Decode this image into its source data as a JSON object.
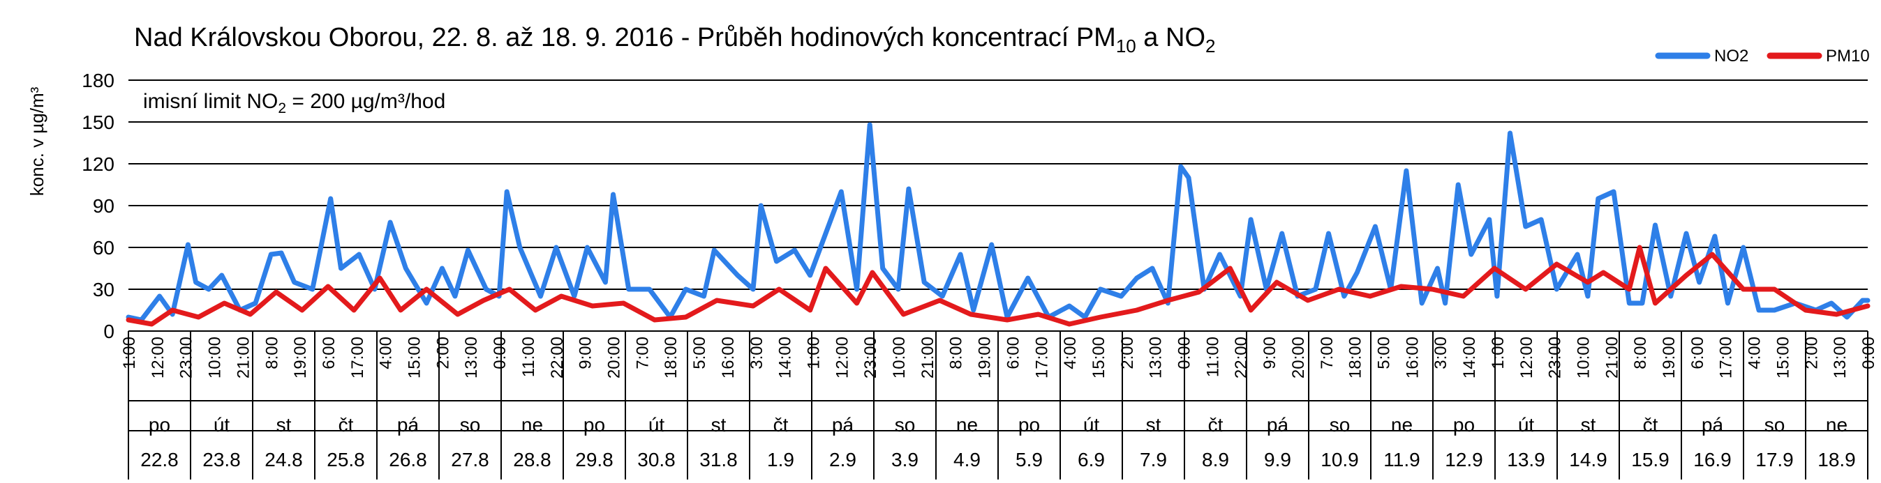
{
  "chart_data": {
    "type": "line",
    "title": {
      "main": "Nad Královskou Oborou, 22. 8. až 18. 9. 2016 - Průběh hodinových koncentrací PM",
      "sub1": "10",
      "mid": " a NO",
      "sub2": "2"
    },
    "ylabel": "konc. v µg/m³",
    "y_ticks": [
      0,
      30,
      60,
      90,
      120,
      150,
      180
    ],
    "ylim": [
      0,
      180
    ],
    "grid": true,
    "legend_position": "top-right",
    "annotation": {
      "pre": "imisní limit NO",
      "sub": "2",
      "post": " = 200 µg/m³/hod"
    },
    "x_start": "2016-08-22 01:00",
    "x_end": "2016-09-19 00:00",
    "x_tick_labels": [
      "1:00",
      "12:00",
      "23:00",
      "10:00",
      "21:00",
      "8:00",
      "19:00",
      "6:00",
      "17:00",
      "4:00",
      "15:00",
      "2:00",
      "13:00",
      "0:00",
      "11:00",
      "22:00",
      "9:00",
      "20:00",
      "7:00",
      "18:00",
      "5:00",
      "16:00",
      "3:00",
      "14:00",
      "1:00",
      "12:00",
      "23:00",
      "10:00",
      "21:00",
      "8:00",
      "19:00",
      "6:00",
      "17:00",
      "4:00",
      "15:00",
      "2:00",
      "13:00",
      "0:00",
      "11:00",
      "22:00",
      "9:00",
      "20:00",
      "7:00",
      "18:00",
      "5:00",
      "16:00",
      "3:00",
      "14:00",
      "1:00",
      "12:00",
      "23:00",
      "10:00",
      "21:00",
      "8:00",
      "19:00",
      "6:00",
      "17:00",
      "4:00",
      "15:00",
      "2:00",
      "13:00",
      "0:00"
    ],
    "days": [
      {
        "dow": "po",
        "date": "22.8"
      },
      {
        "dow": "út",
        "date": "23.8"
      },
      {
        "dow": "st",
        "date": "24.8"
      },
      {
        "dow": "čt",
        "date": "25.8"
      },
      {
        "dow": "pá",
        "date": "26.8"
      },
      {
        "dow": "so",
        "date": "27.8"
      },
      {
        "dow": "ne",
        "date": "28.8"
      },
      {
        "dow": "po",
        "date": "29.8"
      },
      {
        "dow": "út",
        "date": "30.8"
      },
      {
        "dow": "st",
        "date": "31.8"
      },
      {
        "dow": "čt",
        "date": "1.9"
      },
      {
        "dow": "pá",
        "date": "2.9"
      },
      {
        "dow": "so",
        "date": "3.9"
      },
      {
        "dow": "ne",
        "date": "4.9"
      },
      {
        "dow": "po",
        "date": "5.9"
      },
      {
        "dow": "út",
        "date": "6.9"
      },
      {
        "dow": "st",
        "date": "7.9"
      },
      {
        "dow": "čt",
        "date": "8.9"
      },
      {
        "dow": "pá",
        "date": "9.9"
      },
      {
        "dow": "so",
        "date": "10.9"
      },
      {
        "dow": "ne",
        "date": "11.9"
      },
      {
        "dow": "po",
        "date": "12.9"
      },
      {
        "dow": "út",
        "date": "13.9"
      },
      {
        "dow": "st",
        "date": "14.9"
      },
      {
        "dow": "čt",
        "date": "15.9"
      },
      {
        "dow": "pá",
        "date": "16.9"
      },
      {
        "dow": "so",
        "date": "17.9"
      },
      {
        "dow": "ne",
        "date": "18.9"
      }
    ],
    "series": [
      {
        "name": "NO2",
        "color": "#2E7FE8",
        "x": [
          "2016-08-22 01:00",
          "2016-08-22 06:00",
          "2016-08-22 13:00",
          "2016-08-22 18:00",
          "2016-08-23 00:00",
          "2016-08-23 03:00",
          "2016-08-23 08:00",
          "2016-08-23 13:00",
          "2016-08-23 20:00",
          "2016-08-24 02:00",
          "2016-08-24 08:00",
          "2016-08-24 12:00",
          "2016-08-24 17:00",
          "2016-08-25 00:00",
          "2016-08-25 07:00",
          "2016-08-25 11:00",
          "2016-08-25 18:00",
          "2016-08-26 00:00",
          "2016-08-26 06:00",
          "2016-08-26 12:00",
          "2016-08-26 20:00",
          "2016-08-27 02:00",
          "2016-08-27 07:00",
          "2016-08-27 12:00",
          "2016-08-27 19:00",
          "2016-08-28 00:00",
          "2016-08-28 03:00",
          "2016-08-28 08:00",
          "2016-08-28 16:00",
          "2016-08-28 22:00",
          "2016-08-29 05:00",
          "2016-08-29 10:00",
          "2016-08-29 17:00",
          "2016-08-29 20:00",
          "2016-08-30 02:00",
          "2016-08-30 10:00",
          "2016-08-30 18:00",
          "2016-08-31 00:00",
          "2016-08-31 07:00",
          "2016-08-31 11:00",
          "2016-08-31 20:00",
          "2016-09-01 02:00",
          "2016-09-01 05:00",
          "2016-09-01 11:00",
          "2016-09-01 18:00",
          "2016-09-02 00:00",
          "2016-09-02 06:00",
          "2016-09-02 12:00",
          "2016-09-02 18:00",
          "2016-09-02 23:00",
          "2016-09-03 04:00",
          "2016-09-03 10:00",
          "2016-09-03 14:00",
          "2016-09-03 20:00",
          "2016-09-04 03:00",
          "2016-09-04 10:00",
          "2016-09-04 15:00",
          "2016-09-04 22:00",
          "2016-09-05 04:00",
          "2016-09-05 12:00",
          "2016-09-05 20:00",
          "2016-09-06 04:00",
          "2016-09-06 10:00",
          "2016-09-06 16:00",
          "2016-09-07 00:00",
          "2016-09-07 06:00",
          "2016-09-07 12:00",
          "2016-09-07 18:00",
          "2016-09-07 23:00",
          "2016-09-08 02:00",
          "2016-09-08 08:00",
          "2016-09-08 14:00",
          "2016-09-08 22:00",
          "2016-09-09 02:00",
          "2016-09-09 08:00",
          "2016-09-09 14:00",
          "2016-09-09 20:00",
          "2016-09-10 03:00",
          "2016-09-10 08:00",
          "2016-09-10 14:00",
          "2016-09-10 19:00",
          "2016-09-11 02:00",
          "2016-09-11 08:00",
          "2016-09-11 14:00",
          "2016-09-11 20:00",
          "2016-09-12 02:00",
          "2016-09-12 05:00",
          "2016-09-12 10:00",
          "2016-09-12 15:00",
          "2016-09-12 22:00",
          "2016-09-13 01:00",
          "2016-09-13 06:00",
          "2016-09-13 12:00",
          "2016-09-13 18:00",
          "2016-09-14 00:00",
          "2016-09-14 08:00",
          "2016-09-14 12:00",
          "2016-09-14 16:00",
          "2016-09-14 22:00",
          "2016-09-15 04:00",
          "2016-09-15 09:00",
          "2016-09-15 14:00",
          "2016-09-15 20:00",
          "2016-09-16 02:00",
          "2016-09-16 07:00",
          "2016-09-16 13:00",
          "2016-09-16 18:00",
          "2016-09-17 00:00",
          "2016-09-17 06:00",
          "2016-09-17 12:00",
          "2016-09-17 20:00",
          "2016-09-18 04:00",
          "2016-09-18 10:00",
          "2016-09-18 16:00",
          "2016-09-18 22:00",
          "2016-09-19 00:00"
        ],
        "values": [
          10,
          8,
          25,
          12,
          62,
          35,
          30,
          40,
          15,
          20,
          55,
          56,
          35,
          30,
          95,
          45,
          55,
          30,
          78,
          45,
          20,
          45,
          25,
          58,
          30,
          25,
          100,
          60,
          25,
          60,
          25,
          60,
          35,
          98,
          30,
          30,
          10,
          30,
          25,
          58,
          40,
          30,
          90,
          50,
          58,
          40,
          70,
          100,
          30,
          148,
          45,
          30,
          102,
          35,
          25,
          55,
          15,
          62,
          10,
          38,
          10,
          18,
          10,
          30,
          25,
          38,
          45,
          20,
          118,
          110,
          30,
          55,
          25,
          80,
          30,
          70,
          25,
          30,
          70,
          25,
          42,
          75,
          30,
          115,
          20,
          45,
          20,
          105,
          55,
          80,
          25,
          142,
          75,
          80,
          30,
          55,
          25,
          95,
          100,
          20,
          20,
          76,
          25,
          70,
          35,
          68,
          20,
          60,
          15,
          15,
          20,
          15,
          20,
          10,
          22,
          22
        ]
      },
      {
        "name": "PM10",
        "color": "#E31A1C",
        "x": [
          "2016-08-22 01:00",
          "2016-08-22 10:00",
          "2016-08-22 18:00",
          "2016-08-23 04:00",
          "2016-08-23 14:00",
          "2016-08-24 00:00",
          "2016-08-24 10:00",
          "2016-08-24 20:00",
          "2016-08-25 06:00",
          "2016-08-25 16:00",
          "2016-08-26 02:00",
          "2016-08-26 10:00",
          "2016-08-26 20:00",
          "2016-08-27 08:00",
          "2016-08-27 18:00",
          "2016-08-28 04:00",
          "2016-08-28 14:00",
          "2016-08-29 00:00",
          "2016-08-29 12:00",
          "2016-08-30 00:00",
          "2016-08-30 12:00",
          "2016-08-31 00:00",
          "2016-08-31 12:00",
          "2016-09-01 02:00",
          "2016-09-01 12:00",
          "2016-09-02 00:00",
          "2016-09-02 06:00",
          "2016-09-02 18:00",
          "2016-09-03 00:00",
          "2016-09-03 12:00",
          "2016-09-04 02:00",
          "2016-09-04 14:00",
          "2016-09-05 04:00",
          "2016-09-05 16:00",
          "2016-09-06 04:00",
          "2016-09-06 16:00",
          "2016-09-07 06:00",
          "2016-09-07 18:00",
          "2016-09-08 06:00",
          "2016-09-08 18:00",
          "2016-09-09 02:00",
          "2016-09-09 12:00",
          "2016-09-10 00:00",
          "2016-09-10 12:00",
          "2016-09-11 00:00",
          "2016-09-11 12:00",
          "2016-09-12 00:00",
          "2016-09-12 12:00",
          "2016-09-13 00:00",
          "2016-09-13 12:00",
          "2016-09-14 00:00",
          "2016-09-14 12:00",
          "2016-09-14 18:00",
          "2016-09-15 04:00",
          "2016-09-15 08:00",
          "2016-09-15 14:00",
          "2016-09-16 02:00",
          "2016-09-16 12:00",
          "2016-09-17 00:00",
          "2016-09-17 12:00",
          "2016-09-18 00:00",
          "2016-09-18 12:00",
          "2016-09-19 00:00"
        ],
        "values": [
          8,
          5,
          15,
          10,
          20,
          12,
          28,
          15,
          32,
          15,
          38,
          15,
          30,
          12,
          22,
          30,
          15,
          25,
          18,
          20,
          8,
          10,
          22,
          18,
          30,
          15,
          45,
          20,
          42,
          12,
          22,
          12,
          8,
          12,
          5,
          10,
          15,
          22,
          28,
          45,
          15,
          35,
          22,
          30,
          25,
          32,
          30,
          25,
          45,
          30,
          48,
          35,
          42,
          30,
          60,
          20,
          40,
          55,
          30,
          30,
          15,
          12,
          18
        ]
      }
    ]
  }
}
